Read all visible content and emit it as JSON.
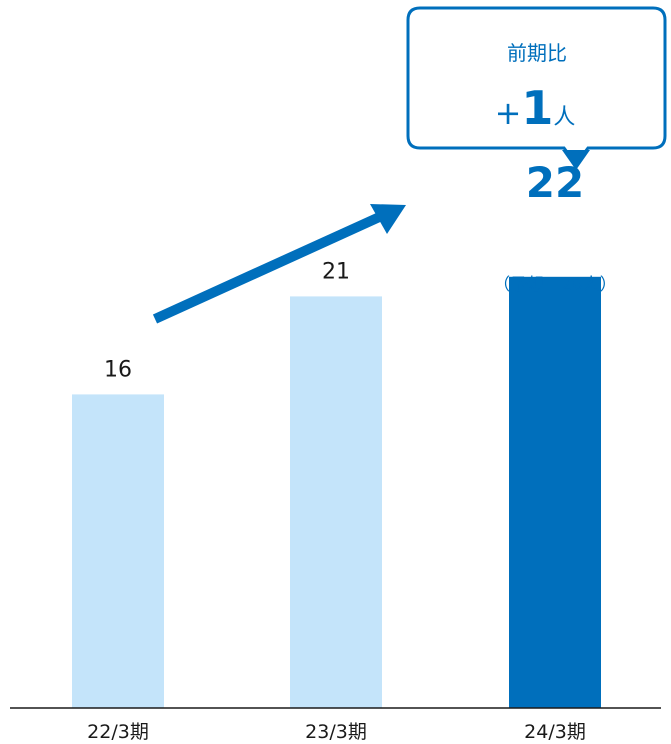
{
  "chart_data": {
    "type": "bar",
    "categories": [
      "22/3期",
      "23/3期",
      "24/3期"
    ],
    "values": [
      16,
      21,
      22
    ],
    "value_labels": [
      "16",
      "21",
      "22"
    ],
    "highlight_index": 2,
    "forecast_note": "（予想　26人）",
    "ylim": [
      0,
      30
    ],
    "grid": false,
    "legend": "none",
    "colors": {
      "bar": "#c4e4fa",
      "highlight": "#006fbc",
      "text": "#1a1a1a",
      "accent_text": "#006fbc",
      "axis": "#1a1a1a"
    }
  },
  "callout": {
    "title": "前期比",
    "sign": "+",
    "number": "1",
    "unit": "人",
    "border_color": "#006fbc"
  },
  "trend_arrow": {
    "icon": "arrow-up-right-icon",
    "color": "#006fbc"
  }
}
